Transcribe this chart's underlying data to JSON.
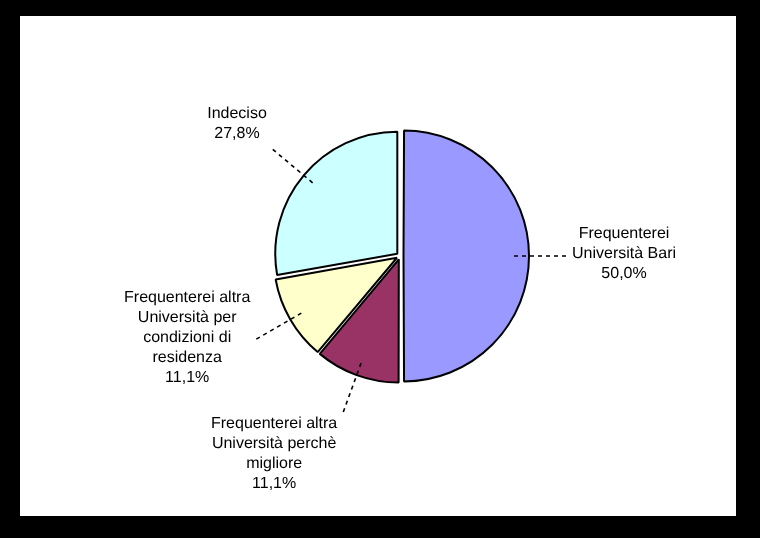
{
  "chart_data": {
    "type": "pie",
    "categories": [
      "Frequenterei Università Bari",
      "Frequenterei altra Università perchè migliore",
      "Frequenterei altra Università per condizioni di residenza",
      "Indeciso"
    ],
    "values": [
      50.0,
      11.1,
      11.1,
      27.8
    ],
    "colors": [
      "#9999ff",
      "#993366",
      "#ffffcc",
      "#ccffff"
    ],
    "value_labels": [
      "50,0%",
      "11,1%",
      "11,1%",
      "27,8%"
    ],
    "legend": false
  }
}
